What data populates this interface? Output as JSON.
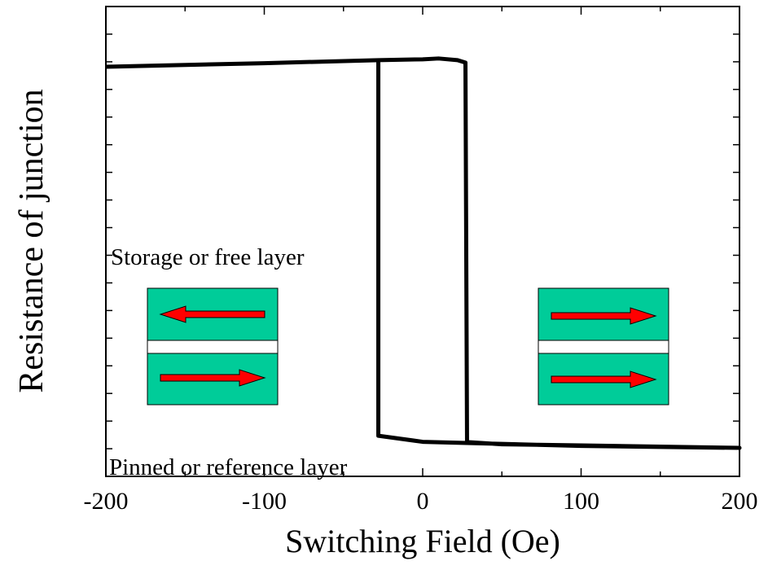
{
  "chart_data": {
    "type": "line",
    "x_label": "Switching Field (Oe)",
    "y_label": "Resistance of junction",
    "annotations": [
      "Storage or free layer",
      "Pinned or reference layer"
    ],
    "x": [
      -200,
      -100,
      -28,
      0,
      10,
      22,
      27,
      28,
      50,
      100,
      200,
      100,
      0,
      -28,
      -28
    ],
    "series": [
      {
        "color": "#000000",
        "values": [
          14.82,
          14.95,
          15.06,
          15.09,
          15.12,
          15.06,
          14.97,
          1.24,
          1.16,
          1.12,
          1.03,
          1.1,
          1.25,
          1.47,
          15.06
        ]
      }
    ],
    "xlim": [
      -200,
      200
    ],
    "xticks": [
      -200,
      -100,
      0,
      100,
      200
    ],
    "xminorticks": [
      -150,
      -50,
      50,
      150
    ],
    "ylim": [
      0,
      17
    ],
    "yticks": [
      1,
      2,
      3,
      4,
      5,
      6,
      7,
      8,
      9,
      10,
      11,
      12,
      13,
      14,
      15,
      16
    ]
  }
}
